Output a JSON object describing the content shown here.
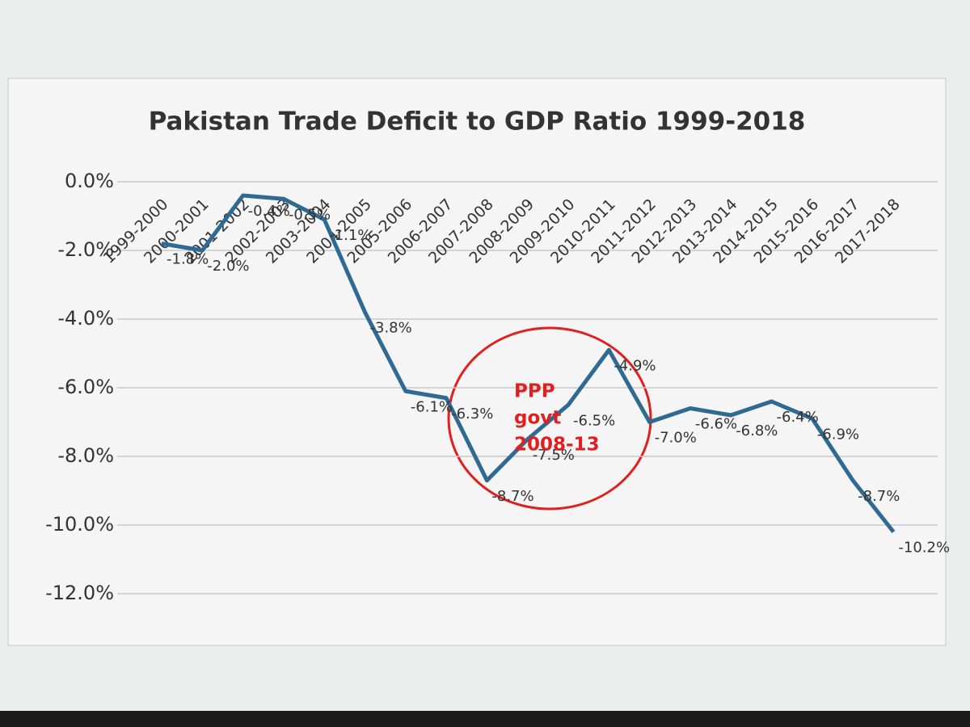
{
  "chart_data": {
    "type": "line",
    "title": "Pakistan Trade Deficit to GDP Ratio 1999-2018",
    "categories": [
      "1999-2000",
      "2000-2001",
      "2001-2002",
      "2002-2003",
      "2003-2004",
      "2004-2005",
      "2005-2006",
      "2006-2007",
      "2007-2008",
      "2008-2009",
      "2009-2010",
      "2010-2011",
      "2011-2012",
      "2012-2013",
      "2013-2014",
      "2014-2015",
      "2015-2016",
      "2016-2017",
      "2017-2018"
    ],
    "series": [
      {
        "name": "Trade Deficit to GDP",
        "color": "#2f6a92",
        "values": [
          -1.8,
          -2.0,
          -0.4,
          -0.5,
          -1.1,
          -3.8,
          -6.1,
          -6.3,
          -8.7,
          -7.5,
          -6.5,
          -4.9,
          -7.0,
          -6.6,
          -6.8,
          -6.4,
          -6.9,
          -8.7,
          -10.2
        ],
        "value_labels": [
          "-1.8%",
          "-2.0%",
          "-0.4%",
          "-0.5%",
          "-1.1%",
          "-3.8%",
          "-6.1%",
          "-6.3%",
          "-8.7%",
          "-7.5%",
          "-6.5%",
          "-4.9%",
          "-7.0%",
          "-6.6%",
          "-6.8%",
          "-6.4%",
          "-6.9%",
          "-8.7%",
          "-10.2%"
        ]
      }
    ],
    "ylim": [
      -12,
      0
    ],
    "yticks": [
      {
        "value": 0,
        "label": "0.0%"
      },
      {
        "value": -2,
        "label": "-2.0%"
      },
      {
        "value": -4,
        "label": "-4.0%"
      },
      {
        "value": -6,
        "label": "-6.0%"
      },
      {
        "value": -8,
        "label": "-8.0%"
      },
      {
        "value": -10,
        "label": "-10.0%"
      },
      {
        "value": -12,
        "label": "-12.0%"
      }
    ],
    "grid": true,
    "annotation": {
      "lines": [
        "PPP",
        "govt",
        "2008-13"
      ],
      "color": "#e02020"
    }
  }
}
